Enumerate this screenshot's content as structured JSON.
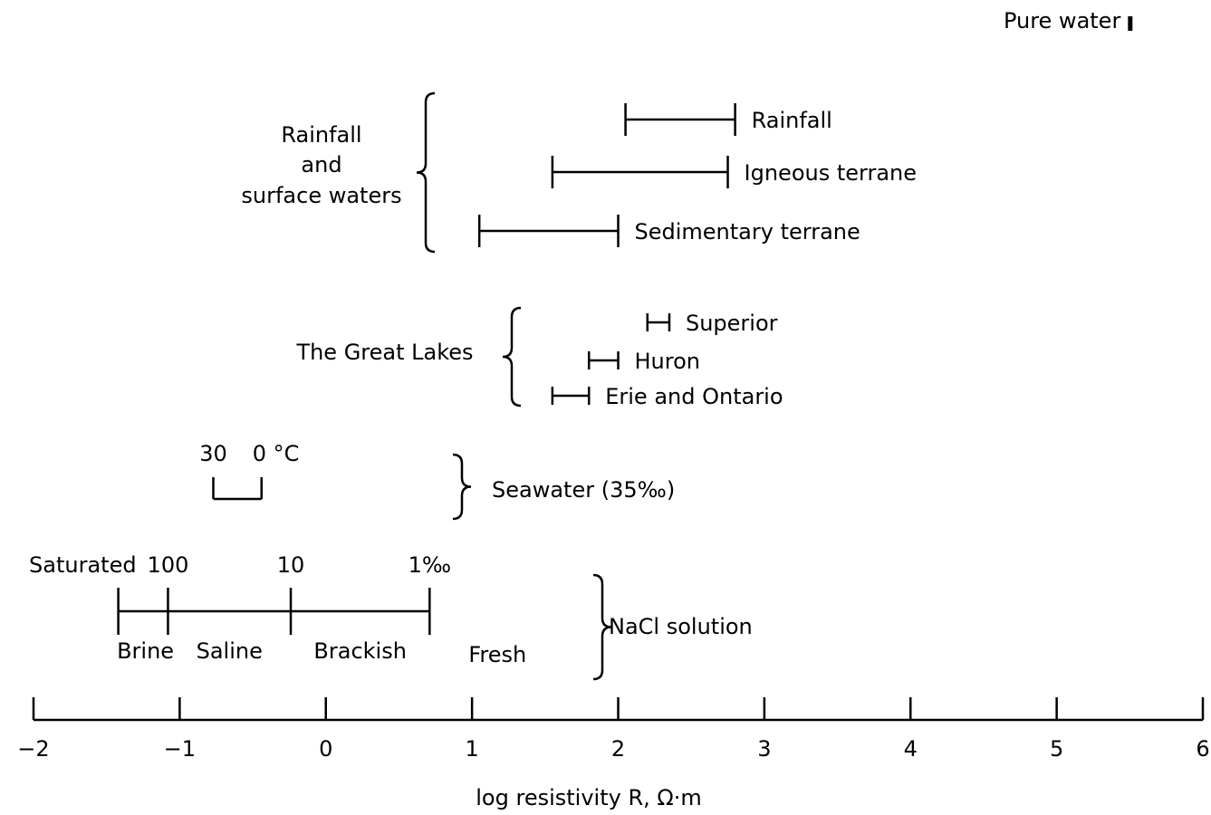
{
  "chart_data": {
    "type": "range",
    "xlabel": "log resistivity R, Ω·m",
    "xlim": [
      -2,
      6
    ],
    "xticks": [
      {
        "value": -2,
        "label": "−2"
      },
      {
        "value": -1,
        "label": "−1"
      },
      0,
      1,
      2,
      3,
      4,
      5,
      6
    ],
    "pure_water": {
      "name": "Pure water",
      "value": 5.5
    },
    "groups": [
      {
        "name": [
          "Rainfall",
          "and",
          "surface waters"
        ],
        "items": [
          {
            "name": "Rainfall",
            "range": [
              2.05,
              2.8
            ]
          },
          {
            "name": "Igneous terrane",
            "range": [
              1.55,
              2.75
            ]
          },
          {
            "name": "Sedimentary terrane",
            "range": [
              1.05,
              2.0
            ]
          }
        ]
      },
      {
        "name": [
          "The Great Lakes"
        ],
        "items": [
          {
            "name": "Superior",
            "range": [
              2.2,
              2.35
            ]
          },
          {
            "name": "Huron",
            "range": [
              1.8,
              2.0
            ]
          },
          {
            "name": "Erie and Ontario",
            "range": [
              1.55,
              1.8
            ]
          }
        ]
      }
    ],
    "seawater": {
      "name": "Seawater (35‰)",
      "range": [
        -0.77,
        -0.44
      ],
      "range_labels": [
        "30",
        "0 °C"
      ]
    },
    "nacl": {
      "name": "NaCl solution",
      "boundaries": [
        {
          "value": -1.42,
          "label": "Saturated"
        },
        {
          "value": -1.08,
          "label": "100"
        },
        {
          "value": -0.24,
          "label": "10"
        },
        {
          "value": 0.71,
          "label": "1‰"
        }
      ],
      "zones": [
        "Brine",
        "Saline",
        "Brackish",
        "Fresh"
      ]
    }
  }
}
